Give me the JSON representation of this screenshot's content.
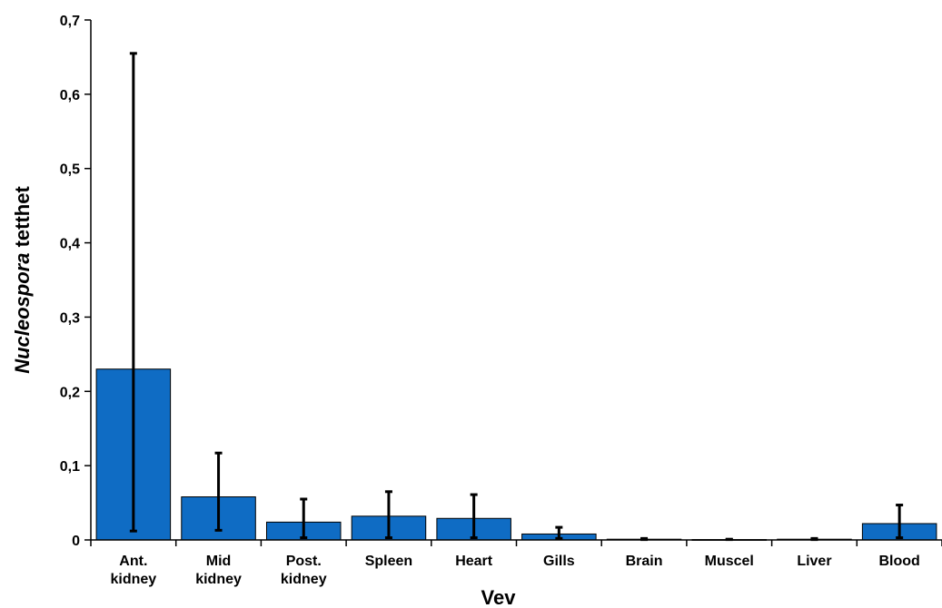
{
  "chart_data": {
    "type": "bar",
    "xlabel": "Vev",
    "ylabel_italic": "Nucleospora",
    "ylabel_rest": " tetthet",
    "ylim": [
      0,
      0.7
    ],
    "ytick_values": [
      0,
      0.1,
      0.2,
      0.3,
      0.4,
      0.5,
      0.6,
      0.7
    ],
    "ytick_labels": [
      "0",
      "0,1",
      "0,2",
      "0,3",
      "0,4",
      "0,5",
      "0,6",
      "0,7"
    ],
    "categories": [
      [
        "Ant.",
        "kidney"
      ],
      [
        "Mid",
        "kidney"
      ],
      [
        "Post.",
        "kidney"
      ],
      [
        "Spleen"
      ],
      [
        "Heart"
      ],
      [
        "Gills"
      ],
      [
        "Brain"
      ],
      [
        "Muscel"
      ],
      [
        "Liver"
      ],
      [
        "Blood"
      ]
    ],
    "values": [
      0.23,
      0.058,
      0.024,
      0.032,
      0.029,
      0.008,
      0.001,
      0.0005,
      0.001,
      0.022
    ],
    "error_low": [
      0.012,
      0.013,
      0.003,
      0.003,
      0.003,
      0.002,
      0.0005,
      0.0005,
      0.0005,
      0.003
    ],
    "error_high": [
      0.655,
      0.117,
      0.055,
      0.065,
      0.061,
      0.017,
      0.002,
      0.001,
      0.002,
      0.047
    ],
    "grid": false,
    "legend": "none",
    "bar_color": "#0f6cc4",
    "bar_edge_color": "#000000",
    "error_bar_color": "#000000"
  }
}
